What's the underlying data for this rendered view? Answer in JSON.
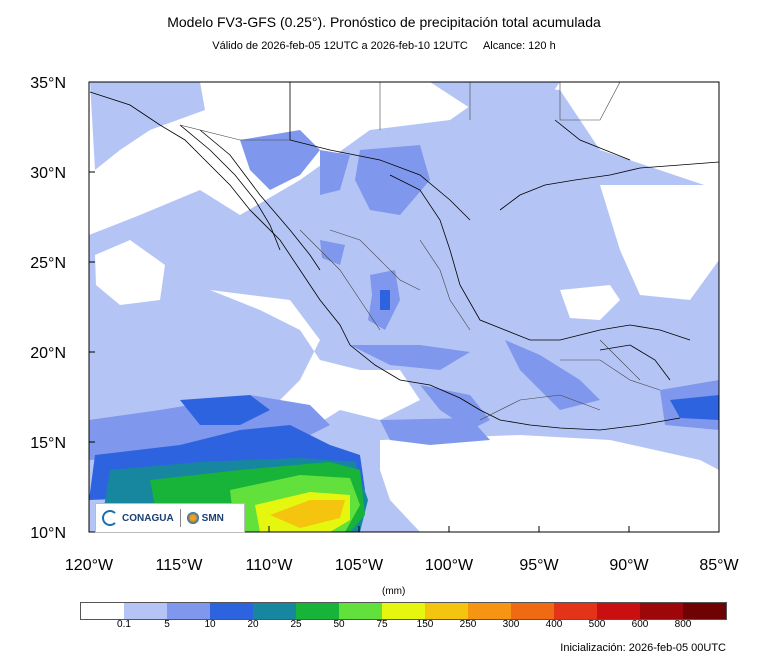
{
  "title": "Modelo FV3-GFS (0.25°). Pronóstico de precipitación total acumulada",
  "subtitle": {
    "validity": "Válido de 2026-feb-05 12UTC a 2026-feb-10 12UTC",
    "range": "Alcance: 120 h"
  },
  "map": {
    "lat_labels": [
      "35°N",
      "30°N",
      "25°N",
      "20°N",
      "15°N",
      "10°N"
    ],
    "lon_labels": [
      "120°W",
      "115°W",
      "110°W",
      "105°W",
      "100°W",
      "95°W",
      "90°W",
      "85°W"
    ]
  },
  "colorbar": {
    "unit": "(mm)",
    "colors": [
      "#ffffff",
      "#b4c5f5",
      "#7f97ec",
      "#2e63e0",
      "#1787a0",
      "#18b43a",
      "#62e03c",
      "#e6f70f",
      "#f5c40e",
      "#f59512",
      "#f06a14",
      "#e33419",
      "#c90f10",
      "#9d0709",
      "#6f0303"
    ],
    "labels": [
      "0.1",
      "5",
      "10",
      "20",
      "25",
      "50",
      "75",
      "150",
      "250",
      "300",
      "400",
      "500",
      "600",
      "800"
    ]
  },
  "logos": {
    "conagua": "CONAGUA",
    "smn": "SMN"
  },
  "initialization": "Inicialización: 2026-feb-05 00UTC"
}
